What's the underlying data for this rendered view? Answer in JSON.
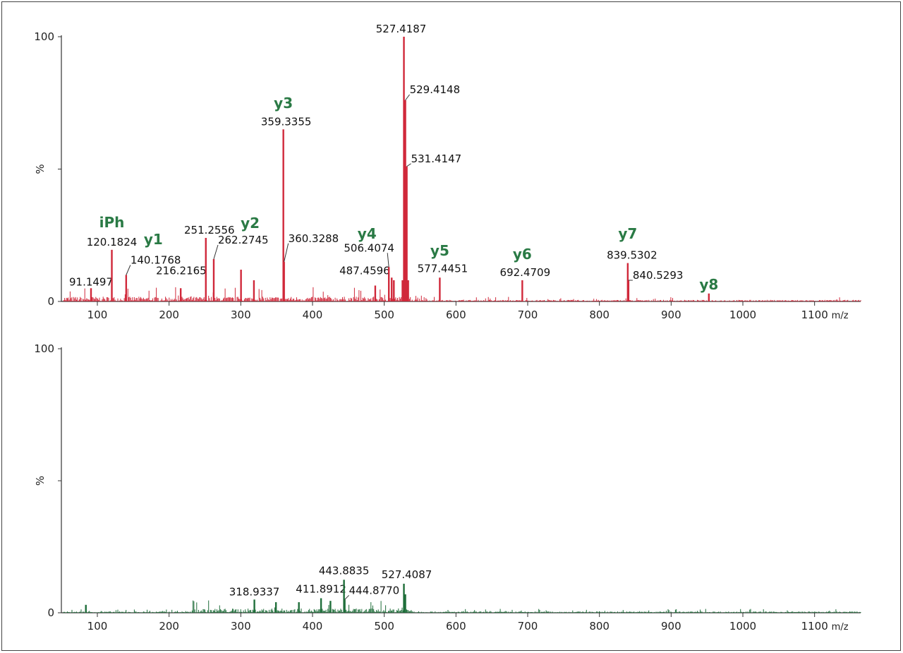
{
  "chart_data": [
    {
      "type": "bar",
      "title": "",
      "xlabel": "m/z",
      "ylabel": "%",
      "xlim": [
        50,
        1160
      ],
      "ylim": [
        0,
        100
      ],
      "x_ticks": [
        100,
        200,
        300,
        400,
        500,
        600,
        700,
        800,
        900,
        1000,
        1100
      ],
      "y_ticks": [
        "0",
        "100"
      ],
      "color": "#d0283a",
      "grid": false,
      "peaks": [
        {
          "mz": 91.1497,
          "intensity": 5,
          "label": "91.1497"
        },
        {
          "mz": 120.1824,
          "intensity": 19.5,
          "label": "120.1824"
        },
        {
          "mz": 140.1768,
          "intensity": 10,
          "label": "140.1768"
        },
        {
          "mz": 216.2165,
          "intensity": 5,
          "label": "216.2165"
        },
        {
          "mz": 251.2556,
          "intensity": 24,
          "label": "251.2556"
        },
        {
          "mz": 262.2745,
          "intensity": 16,
          "label": "262.2745"
        },
        {
          "mz": 300.3,
          "intensity": 12
        },
        {
          "mz": 318.3,
          "intensity": 8
        },
        {
          "mz": 359.3355,
          "intensity": 65,
          "label": "359.3355"
        },
        {
          "mz": 360.3288,
          "intensity": 15,
          "label": "360.3288"
        },
        {
          "mz": 487.4596,
          "intensity": 6,
          "label": "487.4596"
        },
        {
          "mz": 506.4074,
          "intensity": 13,
          "label": "506.4074"
        },
        {
          "mz": 510.4,
          "intensity": 9
        },
        {
          "mz": 513.4,
          "intensity": 8
        },
        {
          "mz": 525.4,
          "intensity": 8
        },
        {
          "mz": 527.4187,
          "intensity": 100,
          "label": "527.4187"
        },
        {
          "mz": 529.4148,
          "intensity": 76,
          "label": "529.4148"
        },
        {
          "mz": 531.4147,
          "intensity": 51,
          "label": "531.4147"
        },
        {
          "mz": 533.4,
          "intensity": 8
        },
        {
          "mz": 577.4451,
          "intensity": 9,
          "label": "577.4451"
        },
        {
          "mz": 692.4709,
          "intensity": 8,
          "label": "692.4709"
        },
        {
          "mz": 839.5302,
          "intensity": 14.5,
          "label": "839.5302"
        },
        {
          "mz": 840.5293,
          "intensity": 8,
          "label": "840.5293"
        },
        {
          "mz": 952.6,
          "intensity": 3
        }
      ],
      "annotations": [
        {
          "text": "iPh",
          "mz": 120.1824
        },
        {
          "text": "y1",
          "mz": 178
        },
        {
          "text": "y2",
          "mz": 313
        },
        {
          "text": "y3",
          "mz": 359.3355
        },
        {
          "text": "y4",
          "mz": 476
        },
        {
          "text": "y5",
          "mz": 577.4451
        },
        {
          "text": "y6",
          "mz": 692.4709
        },
        {
          "text": "y7",
          "mz": 839.5302
        },
        {
          "text": "y8",
          "mz": 952.6
        }
      ],
      "annotation_color": "#2a7a45"
    },
    {
      "type": "bar",
      "title": "",
      "xlabel": "m/z",
      "ylabel": "%",
      "xlim": [
        50,
        1160
      ],
      "ylim": [
        0,
        100
      ],
      "x_ticks": [
        100,
        200,
        300,
        400,
        500,
        600,
        700,
        800,
        900,
        1000,
        1100
      ],
      "y_ticks": [
        "0",
        "100"
      ],
      "color": "#1f6e3a",
      "grid": false,
      "peaks": [
        {
          "mz": 84,
          "intensity": 3
        },
        {
          "mz": 318.9337,
          "intensity": 5,
          "label": "318.9337"
        },
        {
          "mz": 349,
          "intensity": 4
        },
        {
          "mz": 381,
          "intensity": 4
        },
        {
          "mz": 411.8912,
          "intensity": 5.5,
          "label": "411.8912"
        },
        {
          "mz": 425,
          "intensity": 4.5
        },
        {
          "mz": 443.8835,
          "intensity": 12.5,
          "label": "443.8835"
        },
        {
          "mz": 444.877,
          "intensity": 5,
          "label": "444.8770"
        },
        {
          "mz": 527.4087,
          "intensity": 11,
          "label": "527.4087"
        },
        {
          "mz": 529.4,
          "intensity": 7
        }
      ]
    }
  ]
}
